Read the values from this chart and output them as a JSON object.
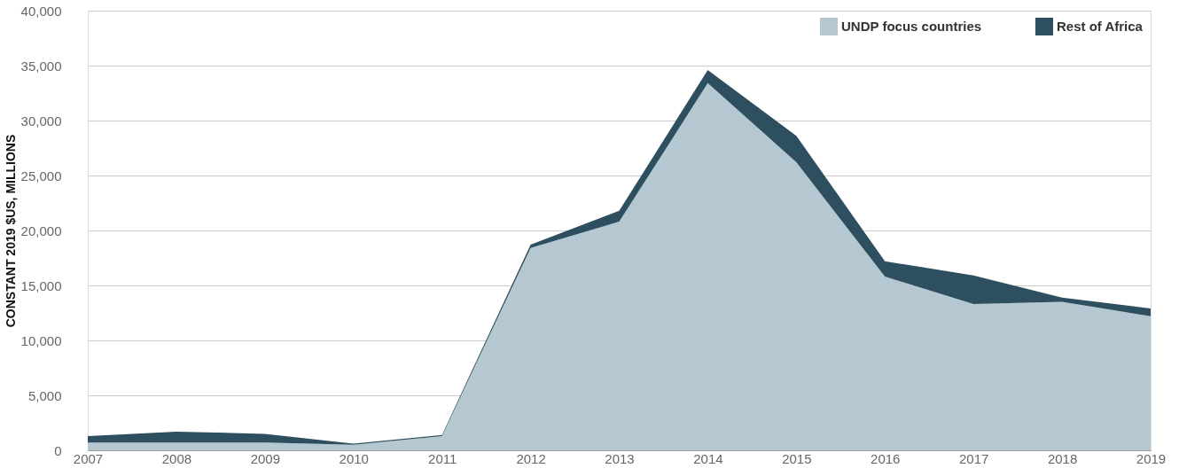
{
  "chart_data": {
    "type": "area",
    "stacked": true,
    "ylabel": "CONSTANT 2019 $US, MILLIONS",
    "x": [
      2007,
      2008,
      2009,
      2010,
      2011,
      2012,
      2013,
      2014,
      2015,
      2016,
      2017,
      2018,
      2019
    ],
    "series": [
      {
        "name": "UNDP focus countries",
        "color": "#b5c8d1",
        "values": [
          700,
          700,
          700,
          500,
          1300,
          18400,
          20800,
          33400,
          26200,
          15800,
          13300,
          13500,
          12200
        ]
      },
      {
        "name": "Rest of Africa",
        "color": "#2e4f5f",
        "values": [
          600,
          1000,
          800,
          100,
          100,
          300,
          1000,
          1200,
          2400,
          1400,
          2600,
          400,
          700
        ]
      }
    ],
    "xlim": [
      2007,
      2019
    ],
    "xticks": [
      2007,
      2008,
      2009,
      2010,
      2011,
      2012,
      2013,
      2014,
      2015,
      2016,
      2017,
      2018,
      2019
    ],
    "ylim": [
      0,
      40000
    ],
    "yticks": [
      0,
      {
        "value": 5000,
        "label": "5,000"
      },
      {
        "value": 10000,
        "label": "10,000"
      },
      {
        "value": 15000,
        "label": "15,000"
      },
      {
        "value": 20000,
        "label": "20,000"
      },
      {
        "value": 25000,
        "label": "25,000"
      },
      {
        "value": 30000,
        "label": "30,000"
      },
      {
        "value": 35000,
        "label": "35,000"
      },
      {
        "value": 40000,
        "label": "40,000"
      }
    ],
    "grid": "y",
    "legend": "top right"
  }
}
